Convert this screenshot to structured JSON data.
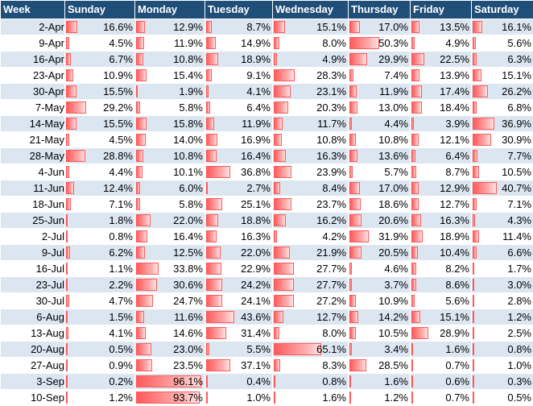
{
  "headers": [
    "Week",
    "Sunday",
    "Monday",
    "Tuesday",
    "Wednesday",
    "Thursday",
    "Friday",
    "Saturday"
  ],
  "databar_color": "#ff5a5a",
  "header_bg": "#1f4e79",
  "row_band_color": "#dce6f1",
  "rows": [
    {
      "week": "2-Apr",
      "values": [
        "16.6%",
        "12.9%",
        "8.7%",
        "15.1%",
        "17.0%",
        "13.5%",
        "16.1%"
      ],
      "bars": [
        0.166,
        0.129,
        0.087,
        0.151,
        0.17,
        0.135,
        0.161
      ]
    },
    {
      "week": "9-Apr",
      "values": [
        "4.5%",
        "11.9%",
        "14.9%",
        "8.0%",
        "50.3%",
        "4.9%",
        "5.6%"
      ],
      "bars": [
        0.045,
        0.119,
        0.149,
        0.08,
        0.503,
        0.049,
        0.056
      ]
    },
    {
      "week": "16-Apr",
      "values": [
        "6.7%",
        "10.8%",
        "18.9%",
        "4.9%",
        "29.9%",
        "22.5%",
        "6.3%"
      ],
      "bars": [
        0.067,
        0.108,
        0.189,
        0.049,
        0.299,
        0.225,
        0.063
      ]
    },
    {
      "week": "23-Apr",
      "values": [
        "10.9%",
        "15.4%",
        "9.1%",
        "28.3%",
        "7.4%",
        "13.9%",
        "15.1%"
      ],
      "bars": [
        0.109,
        0.154,
        0.091,
        0.283,
        0.074,
        0.139,
        0.151
      ]
    },
    {
      "week": "30-Apr",
      "values": [
        "15.5%",
        "1.9%",
        "4.1%",
        "23.1%",
        "11.9%",
        "17.4%",
        "26.2%"
      ],
      "bars": [
        0.155,
        0.019,
        0.041,
        0.231,
        0.119,
        0.174,
        0.262
      ]
    },
    {
      "week": "7-May",
      "values": [
        "29.2%",
        "5.8%",
        "6.4%",
        "20.3%",
        "13.0%",
        "18.4%",
        "6.8%"
      ],
      "bars": [
        0.292,
        0.058,
        0.064,
        0.203,
        0.13,
        0.184,
        0.068
      ]
    },
    {
      "week": "14-May",
      "values": [
        "15.5%",
        "15.8%",
        "11.9%",
        "11.7%",
        "4.4%",
        "3.9%",
        "36.9%"
      ],
      "bars": [
        0.155,
        0.158,
        0.119,
        0.117,
        0.044,
        0.039,
        0.369
      ]
    },
    {
      "week": "21-May",
      "values": [
        "4.5%",
        "14.0%",
        "16.9%",
        "10.8%",
        "10.8%",
        "12.1%",
        "30.9%"
      ],
      "bars": [
        0.045,
        0.14,
        0.169,
        0.108,
        0.108,
        0.121,
        0.309
      ]
    },
    {
      "week": "28-May",
      "values": [
        "28.8%",
        "10.8%",
        "16.4%",
        "16.3%",
        "13.6%",
        "6.4%",
        "7.7%"
      ],
      "bars": [
        0.288,
        0.108,
        0.164,
        0.163,
        0.136,
        0.064,
        0.077
      ]
    },
    {
      "week": "4-Jun",
      "values": [
        "4.4%",
        "10.1%",
        "36.8%",
        "23.9%",
        "5.7%",
        "8.7%",
        "10.5%"
      ],
      "bars": [
        0.044,
        0.101,
        0.368,
        0.239,
        0.057,
        0.087,
        0.105
      ]
    },
    {
      "week": "11-Jun",
      "values": [
        "12.4%",
        "6.0%",
        "2.7%",
        "8.4%",
        "17.0%",
        "12.9%",
        "40.7%"
      ],
      "bars": [
        0.124,
        0.06,
        0.027,
        0.084,
        0.17,
        0.129,
        0.407
      ]
    },
    {
      "week": "18-Jun",
      "values": [
        "7.1%",
        "5.8%",
        "25.1%",
        "23.7%",
        "18.6%",
        "12.7%",
        "7.1%"
      ],
      "bars": [
        0.071,
        0.058,
        0.251,
        0.237,
        0.186,
        0.127,
        0.071
      ]
    },
    {
      "week": "25-Jun",
      "values": [
        "1.8%",
        "22.0%",
        "18.8%",
        "16.2%",
        "20.6%",
        "16.3%",
        "4.3%"
      ],
      "bars": [
        0.018,
        0.22,
        0.188,
        0.162,
        0.206,
        0.163,
        0.043
      ]
    },
    {
      "week": "2-Jul",
      "values": [
        "0.8%",
        "16.4%",
        "16.3%",
        "4.2%",
        "31.9%",
        "18.9%",
        "11.4%"
      ],
      "bars": [
        0.008,
        0.164,
        0.163,
        0.042,
        0.319,
        0.189,
        0.114
      ]
    },
    {
      "week": "9-Jul",
      "values": [
        "6.2%",
        "12.5%",
        "22.0%",
        "21.9%",
        "20.5%",
        "10.4%",
        "6.6%"
      ],
      "bars": [
        0.062,
        0.125,
        0.22,
        0.219,
        0.205,
        0.104,
        0.066
      ]
    },
    {
      "week": "16-Jul",
      "values": [
        "1.1%",
        "33.8%",
        "22.9%",
        "27.7%",
        "4.6%",
        "8.2%",
        "1.7%"
      ],
      "bars": [
        0.011,
        0.338,
        0.229,
        0.277,
        0.046,
        0.082,
        0.017
      ]
    },
    {
      "week": "23-Jul",
      "values": [
        "2.2%",
        "30.6%",
        "24.2%",
        "27.7%",
        "3.7%",
        "8.6%",
        "3.0%"
      ],
      "bars": [
        0.022,
        0.306,
        0.242,
        0.277,
        0.037,
        0.086,
        0.03
      ]
    },
    {
      "week": "30-Jul",
      "values": [
        "4.7%",
        "24.7%",
        "24.1%",
        "27.2%",
        "10.9%",
        "5.6%",
        "2.8%"
      ],
      "bars": [
        0.047,
        0.247,
        0.241,
        0.272,
        0.109,
        0.056,
        0.028
      ]
    },
    {
      "week": "6-Aug",
      "values": [
        "1.5%",
        "11.6%",
        "43.6%",
        "12.7%",
        "14.2%",
        "15.1%",
        "1.2%"
      ],
      "bars": [
        0.015,
        0.116,
        0.436,
        0.127,
        0.142,
        0.151,
        0.012
      ]
    },
    {
      "week": "13-Aug",
      "values": [
        "4.1%",
        "14.6%",
        "31.4%",
        "8.0%",
        "10.5%",
        "28.9%",
        "2.5%"
      ],
      "bars": [
        0.041,
        0.146,
        0.314,
        0.08,
        0.105,
        0.289,
        0.025
      ]
    },
    {
      "week": "20-Aug",
      "values": [
        "0.5%",
        "23.0%",
        "5.5%",
        "65.1%",
        "3.4%",
        "1.6%",
        "0.8%"
      ],
      "bars": [
        0.005,
        0.23,
        0.055,
        0.651,
        0.034,
        0.016,
        0.008
      ]
    },
    {
      "week": "27-Aug",
      "values": [
        "0.9%",
        "23.5%",
        "37.1%",
        "8.3%",
        "28.5%",
        "0.7%",
        "1.0%"
      ],
      "bars": [
        0.009,
        0.235,
        0.371,
        0.083,
        0.285,
        0.007,
        0.01
      ]
    },
    {
      "week": "3-Sep",
      "values": [
        "0.2%",
        "96.1%",
        "0.4%",
        "0.8%",
        "1.6%",
        "0.6%",
        "0.3%"
      ],
      "bars": [
        0.002,
        0.961,
        0.004,
        0.008,
        0.016,
        0.006,
        0.003
      ]
    },
    {
      "week": "10-Sep",
      "values": [
        "1.2%",
        "93.7%",
        "1.0%",
        "1.6%",
        "1.2%",
        "0.7%",
        "0.5%"
      ],
      "bars": [
        0.012,
        0.937,
        0.01,
        0.016,
        0.012,
        0.007,
        0.005
      ]
    }
  ]
}
